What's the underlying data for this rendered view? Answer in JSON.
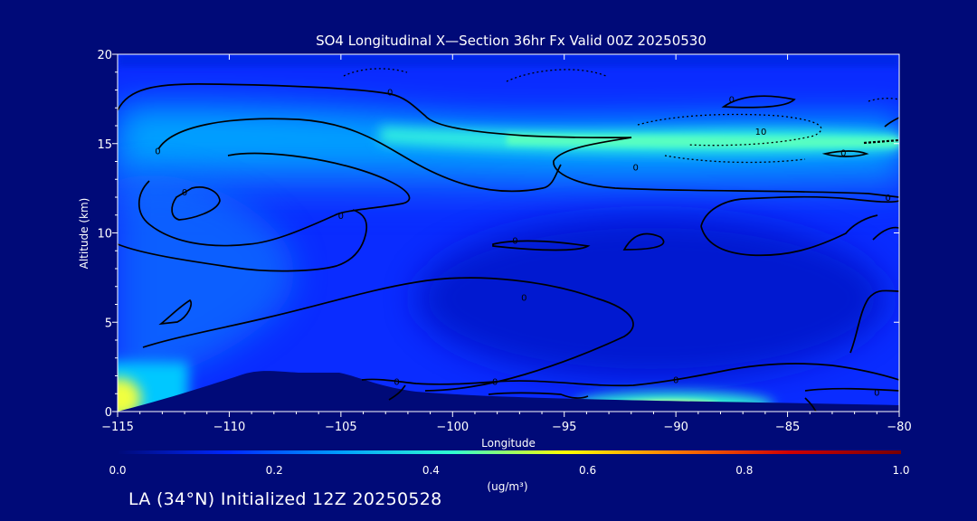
{
  "chart_data": {
    "type": "heatmap",
    "title": "SO4 Longitudinal X—Section 36hr  Fx Valid 00Z 20250530",
    "xlabel": "Longitude",
    "ylabel": "Altitude (km)",
    "xlim": [
      -115,
      -80
    ],
    "ylim": [
      0,
      20
    ],
    "x_ticks": [
      -115,
      -110,
      -105,
      -100,
      -95,
      -90,
      -85,
      -80
    ],
    "x_tick_labels": [
      "−115",
      "−110",
      "−105",
      "−100",
      "−95",
      "−90",
      "−85",
      "−80"
    ],
    "y_ticks": [
      0,
      5,
      10,
      15,
      20
    ],
    "y_tick_labels": [
      "0",
      "5",
      "10",
      "15",
      "20"
    ],
    "colorbar": {
      "min": 0.0,
      "max": 1.0,
      "ticks": [
        "0.0",
        "0.2",
        "0.4",
        "0.6",
        "0.8",
        "1.0"
      ],
      "units": "(ug/m³)",
      "colors": [
        "#000a78",
        "#0028ff",
        "#00a0ff",
        "#30ffd0",
        "#ffff00",
        "#ff7800",
        "#d00000",
        "#780000"
      ]
    },
    "field_samples": [
      {
        "lon": -114.5,
        "alt": 0.5,
        "value": 0.55
      },
      {
        "lon": -113,
        "alt": 1.5,
        "value": 0.3
      },
      {
        "lon": -112,
        "alt": 8,
        "value": 0.22
      },
      {
        "lon": -110,
        "alt": 13,
        "value": 0.22
      },
      {
        "lon": -105,
        "alt": 14,
        "value": 0.28
      },
      {
        "lon": -100,
        "alt": 15.2,
        "value": 0.33
      },
      {
        "lon": -95,
        "alt": 15.3,
        "value": 0.4
      },
      {
        "lon": -90,
        "alt": 15.3,
        "value": 0.42
      },
      {
        "lon": -85,
        "alt": 15.2,
        "value": 0.4
      },
      {
        "lon": -80,
        "alt": 15.1,
        "value": 0.38
      },
      {
        "lon": -90,
        "alt": 0.3,
        "value": 0.5
      },
      {
        "lon": -95,
        "alt": 8,
        "value": 0.05
      },
      {
        "lon": -85,
        "alt": 5,
        "value": 0.05
      }
    ],
    "contour_labels": [
      {
        "text": "0",
        "lon": -113.2,
        "alt": 14.6
      },
      {
        "text": "0",
        "lon": -112,
        "alt": 12.3
      },
      {
        "text": "0",
        "lon": -102.8,
        "alt": 17.9
      },
      {
        "text": "0",
        "lon": -105,
        "alt": 11
      },
      {
        "text": "0",
        "lon": -91.8,
        "alt": 13.7
      },
      {
        "text": "0",
        "lon": -97.2,
        "alt": 9.6
      },
      {
        "text": "0",
        "lon": -96.8,
        "alt": 6.4
      },
      {
        "text": "0",
        "lon": -90,
        "alt": 1.8
      },
      {
        "text": "0",
        "lon": -102.5,
        "alt": 1.7
      },
      {
        "text": "0",
        "lon": -98.1,
        "alt": 1.7
      },
      {
        "text": "0",
        "lon": -81,
        "alt": 1.1
      },
      {
        "text": "0",
        "lon": -87.5,
        "alt": 17.5
      },
      {
        "text": "0",
        "lon": -82.5,
        "alt": 14.5
      },
      {
        "text": "0",
        "lon": -80.5,
        "alt": 12
      },
      {
        "text": "10",
        "lon": -86.2,
        "alt": 15.7
      }
    ]
  },
  "footer": {
    "caption": "LA (34°N) Initialized 12Z 20250528"
  }
}
